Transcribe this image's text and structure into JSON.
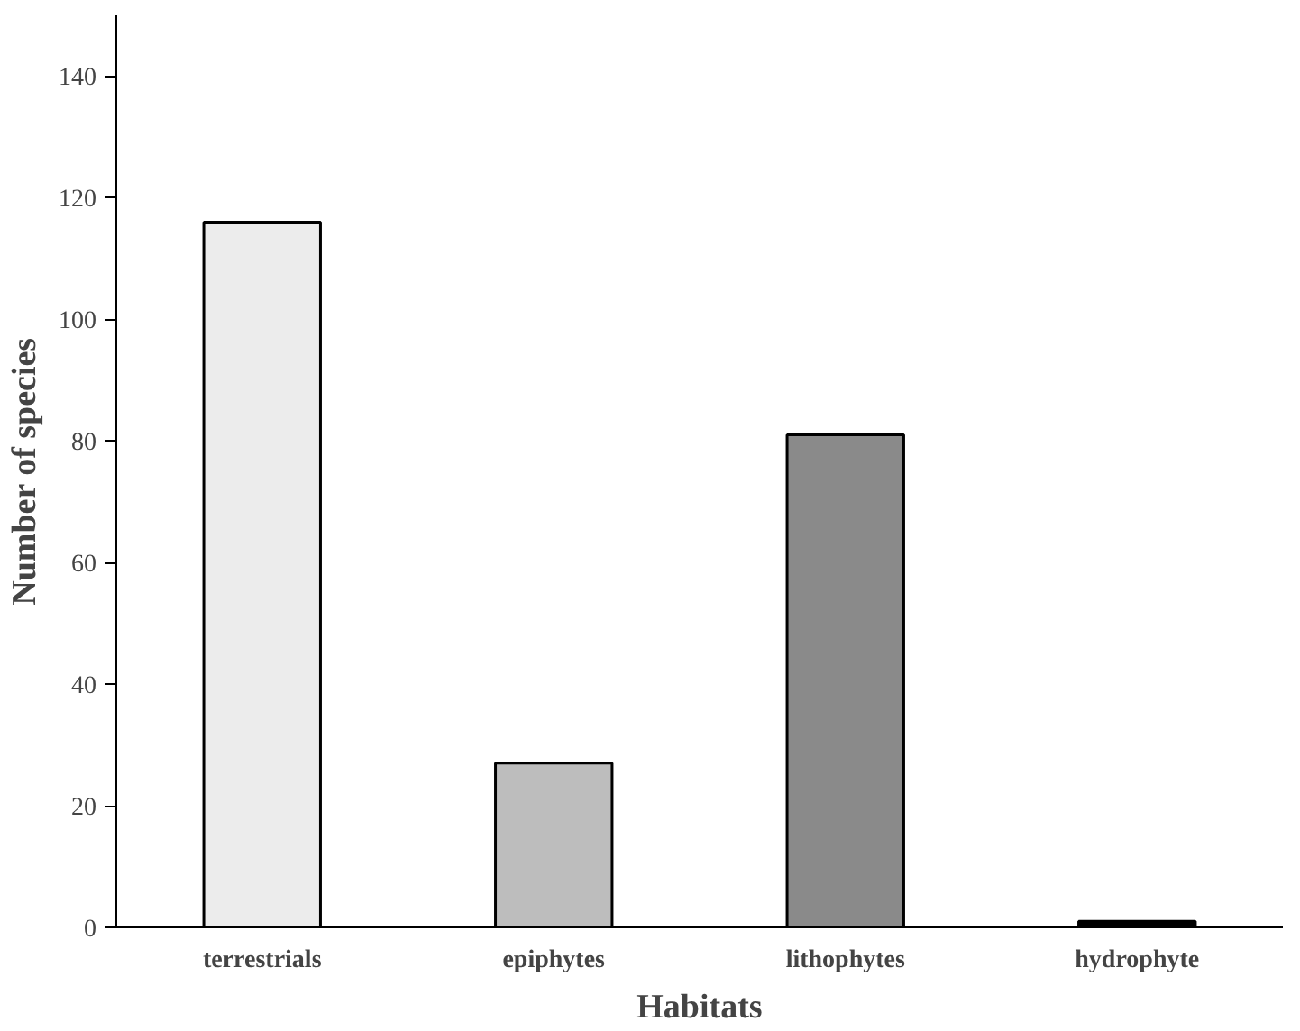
{
  "chart_data": {
    "type": "bar",
    "xlabel": "Habitats",
    "ylabel": "Number of species",
    "categories": [
      "terrestrials",
      "epiphytes",
      "lithophytes",
      "hydrophyte"
    ],
    "values": [
      116,
      27,
      81,
      1
    ],
    "colors": [
      "#ececec",
      "#bdbdbd",
      "#8a8a8a",
      "#000000"
    ],
    "ylim": [
      0,
      150
    ],
    "yticks": [
      0,
      20,
      40,
      60,
      80,
      100,
      120,
      140
    ],
    "grid": false
  }
}
